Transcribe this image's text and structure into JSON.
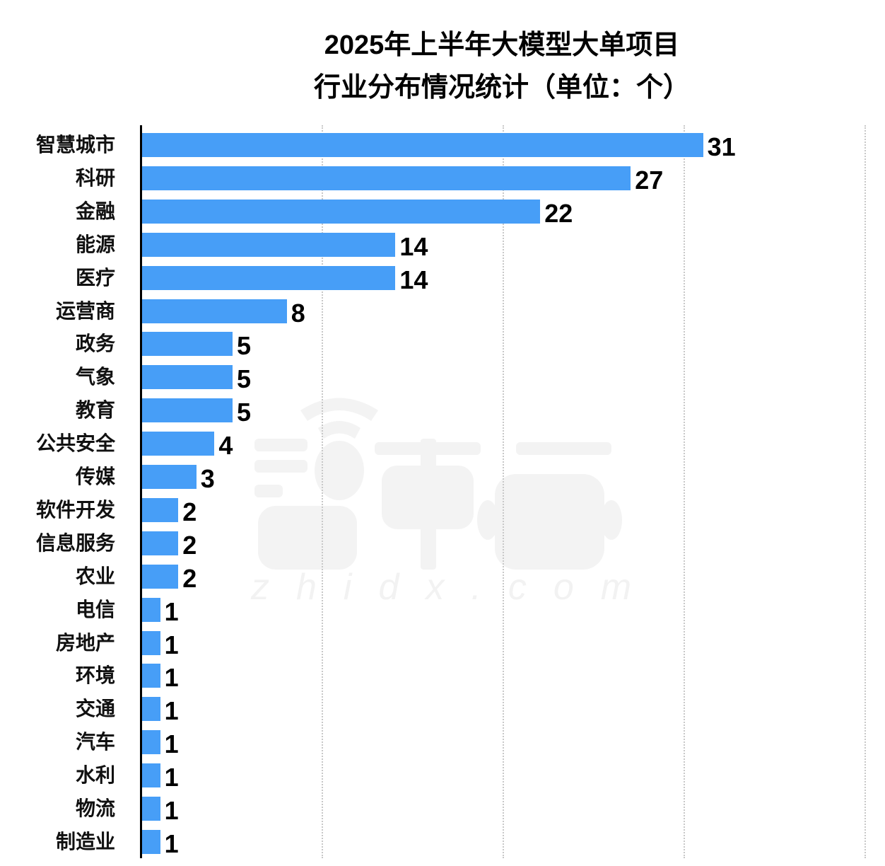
{
  "title": {
    "line1": "2025年上半年大模型大单项目",
    "line2": "行业分布情况统计（单位：个）"
  },
  "watermark": {
    "logo": "智東西",
    "url": "zhidx.com"
  },
  "colors": {
    "bar": "#479ef7",
    "axis": "#000000",
    "grid": "#c8c8c8",
    "watermark": "#f2f2f2"
  },
  "chart_data": {
    "type": "bar",
    "orientation": "horizontal",
    "title": "2025年上半年大模型大单项目 行业分布情况统计（单位：个）",
    "xlabel": "",
    "ylabel": "",
    "categories": [
      "智慧城市",
      "科研",
      "金融",
      "能源",
      "医疗",
      "运营商",
      "政务",
      "气象",
      "教育",
      "公共安全",
      "传媒",
      "软件开发",
      "信息服务",
      "农业",
      "电信",
      "房地产",
      "环境",
      "交通",
      "汽车",
      "水利",
      "物流",
      "制造业"
    ],
    "values": [
      31,
      27,
      22,
      14,
      14,
      8,
      5,
      5,
      5,
      4,
      3,
      2,
      2,
      2,
      1,
      1,
      1,
      1,
      1,
      1,
      1,
      1
    ],
    "xlim": [
      0,
      40
    ],
    "grid_x": [
      10,
      20,
      30,
      40
    ],
    "grid": "vertical dotted",
    "data_labels": true,
    "legend": "none"
  },
  "rows": [
    {
      "label": "智慧城市",
      "value": "31",
      "n": 31
    },
    {
      "label": "科研",
      "value": "27",
      "n": 27
    },
    {
      "label": "金融",
      "value": "22",
      "n": 22
    },
    {
      "label": "能源",
      "value": "14",
      "n": 14
    },
    {
      "label": "医疗",
      "value": "14",
      "n": 14
    },
    {
      "label": "运营商",
      "value": "8",
      "n": 8
    },
    {
      "label": "政务",
      "value": "5",
      "n": 5
    },
    {
      "label": "气象",
      "value": "5",
      "n": 5
    },
    {
      "label": "教育",
      "value": "5",
      "n": 5
    },
    {
      "label": "公共安全",
      "value": "4",
      "n": 4
    },
    {
      "label": "传媒",
      "value": "3",
      "n": 3
    },
    {
      "label": "软件开发",
      "value": "2",
      "n": 2
    },
    {
      "label": "信息服务",
      "value": "2",
      "n": 2
    },
    {
      "label": "农业",
      "value": "2",
      "n": 2
    },
    {
      "label": "电信",
      "value": "1",
      "n": 1
    },
    {
      "label": "房地产",
      "value": "1",
      "n": 1
    },
    {
      "label": "环境",
      "value": "1",
      "n": 1
    },
    {
      "label": "交通",
      "value": "1",
      "n": 1
    },
    {
      "label": "汽车",
      "value": "1",
      "n": 1
    },
    {
      "label": "水利",
      "value": "1",
      "n": 1
    },
    {
      "label": "物流",
      "value": "1",
      "n": 1
    },
    {
      "label": "制造业",
      "value": "1",
      "n": 1
    }
  ]
}
